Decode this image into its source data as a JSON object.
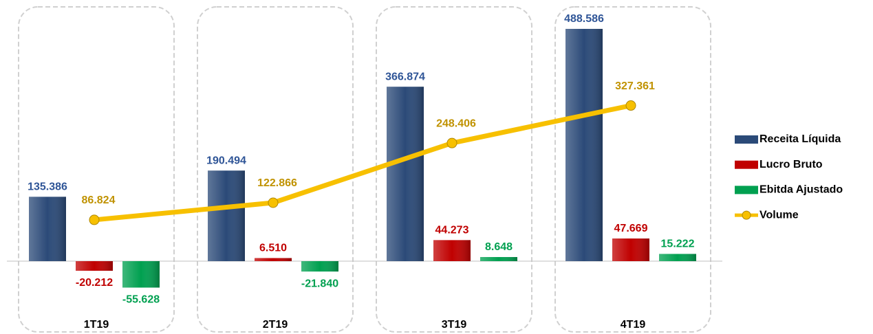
{
  "chart_data": {
    "type": "bar",
    "categories": [
      "1T19",
      "2T19",
      "3T19",
      "4T19"
    ],
    "series": [
      {
        "name": "Receita Líquida",
        "color": "#2b4a78",
        "label_color": "#2f5597",
        "values": [
          135386,
          190494,
          366874,
          488586
        ],
        "value_labels": [
          "135.386",
          "190.494",
          "366.874",
          "488.586"
        ]
      },
      {
        "name": "Lucro Bruto",
        "color": "#c00000",
        "label_color": "#c00000",
        "values": [
          -20212,
          6510,
          44273,
          47669
        ],
        "value_labels": [
          "-20.212",
          "6.510",
          "44.273",
          "47.669"
        ]
      },
      {
        "name": "Ebitda Ajustado",
        "color": "#00a050",
        "label_color": "#00a050",
        "values": [
          -55628,
          -21840,
          8648,
          15222
        ],
        "value_labels": [
          "-55.628",
          "-21.840",
          "8.648",
          "15.222"
        ]
      },
      {
        "name": "Volume",
        "type": "line",
        "color": "#f7c000",
        "label_color": "#c09200",
        "values": [
          86824,
          122866,
          248406,
          327361
        ],
        "value_labels": [
          "86.824",
          "122.866",
          "248.406",
          "327.361"
        ]
      }
    ],
    "legend": "right"
  }
}
